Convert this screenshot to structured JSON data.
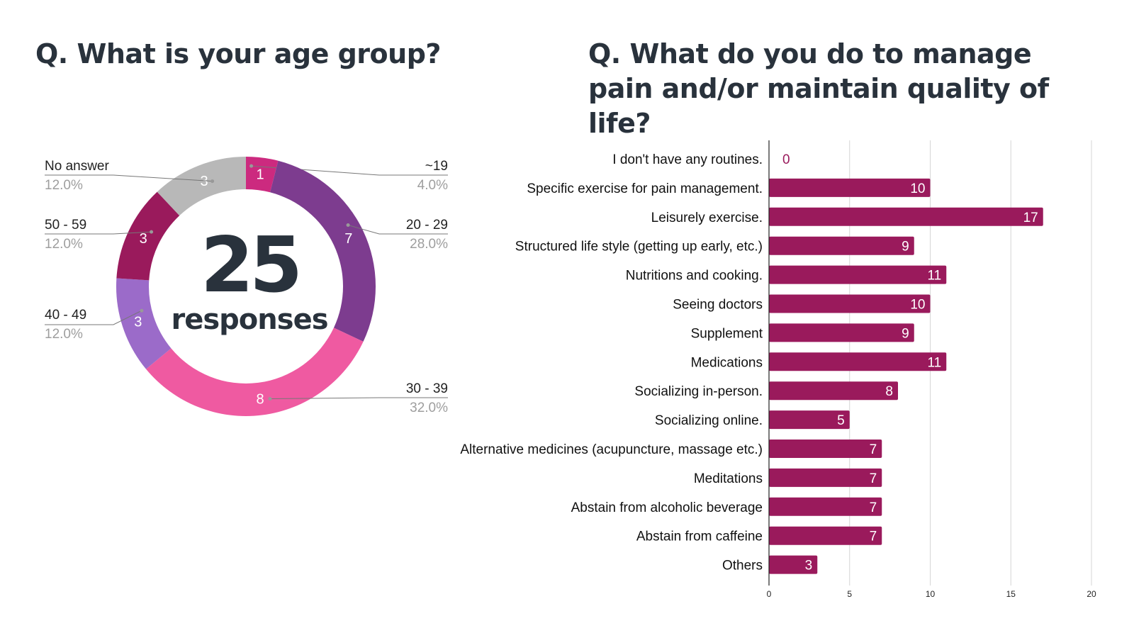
{
  "chart_data": [
    {
      "type": "pie",
      "variant": "donut",
      "title": "Q. What is your age group?",
      "center_value": "25",
      "center_label": "responses",
      "slices": [
        {
          "label": "~19",
          "value": 1,
          "percent": "4.0%",
          "color": "#cc2a7f",
          "side": "right"
        },
        {
          "label": "20 - 29",
          "value": 7,
          "percent": "28.0%",
          "color": "#7d3c8f",
          "side": "right"
        },
        {
          "label": "30 - 39",
          "value": 8,
          "percent": "32.0%",
          "color": "#ef5aa1",
          "side": "right"
        },
        {
          "label": "40 - 49",
          "value": 3,
          "percent": "12.0%",
          "color": "#9b6bc9",
          "side": "left"
        },
        {
          "label": "50 - 59",
          "value": 3,
          "percent": "12.0%",
          "color": "#9a1a5c",
          "side": "left"
        },
        {
          "label": "No answer",
          "value": 3,
          "percent": "12.0%",
          "color": "#b8b8b8",
          "side": "left"
        }
      ],
      "start": "top",
      "direction": "clockwise"
    },
    {
      "type": "bar",
      "orientation": "horizontal",
      "title": "Q. What do you do to manage pain and/or maintain quality of life?",
      "categories": [
        "I don't have any routines.",
        "Specific exercise for pain management.",
        "Leisurely exercise.",
        "Structured life style (getting up early, etc.)",
        "Nutritions and cooking.",
        "Seeing doctors",
        "Supplement",
        "Medications",
        "Socializing in-person.",
        "Socializing online.",
        "Alternative medicines (acupuncture, massage etc.)",
        "Meditations",
        "Abstain from alcoholic beverage",
        "Abstain from caffeine",
        "Others"
      ],
      "values": [
        0,
        10,
        17,
        9,
        11,
        10,
        9,
        11,
        8,
        5,
        7,
        7,
        7,
        7,
        3
      ],
      "bar_color": "#9a1a5c",
      "xlim": [
        0,
        20
      ],
      "xticks": [
        0,
        5,
        10,
        15,
        20
      ],
      "grid": true,
      "xlabel": "",
      "ylabel": ""
    }
  ]
}
